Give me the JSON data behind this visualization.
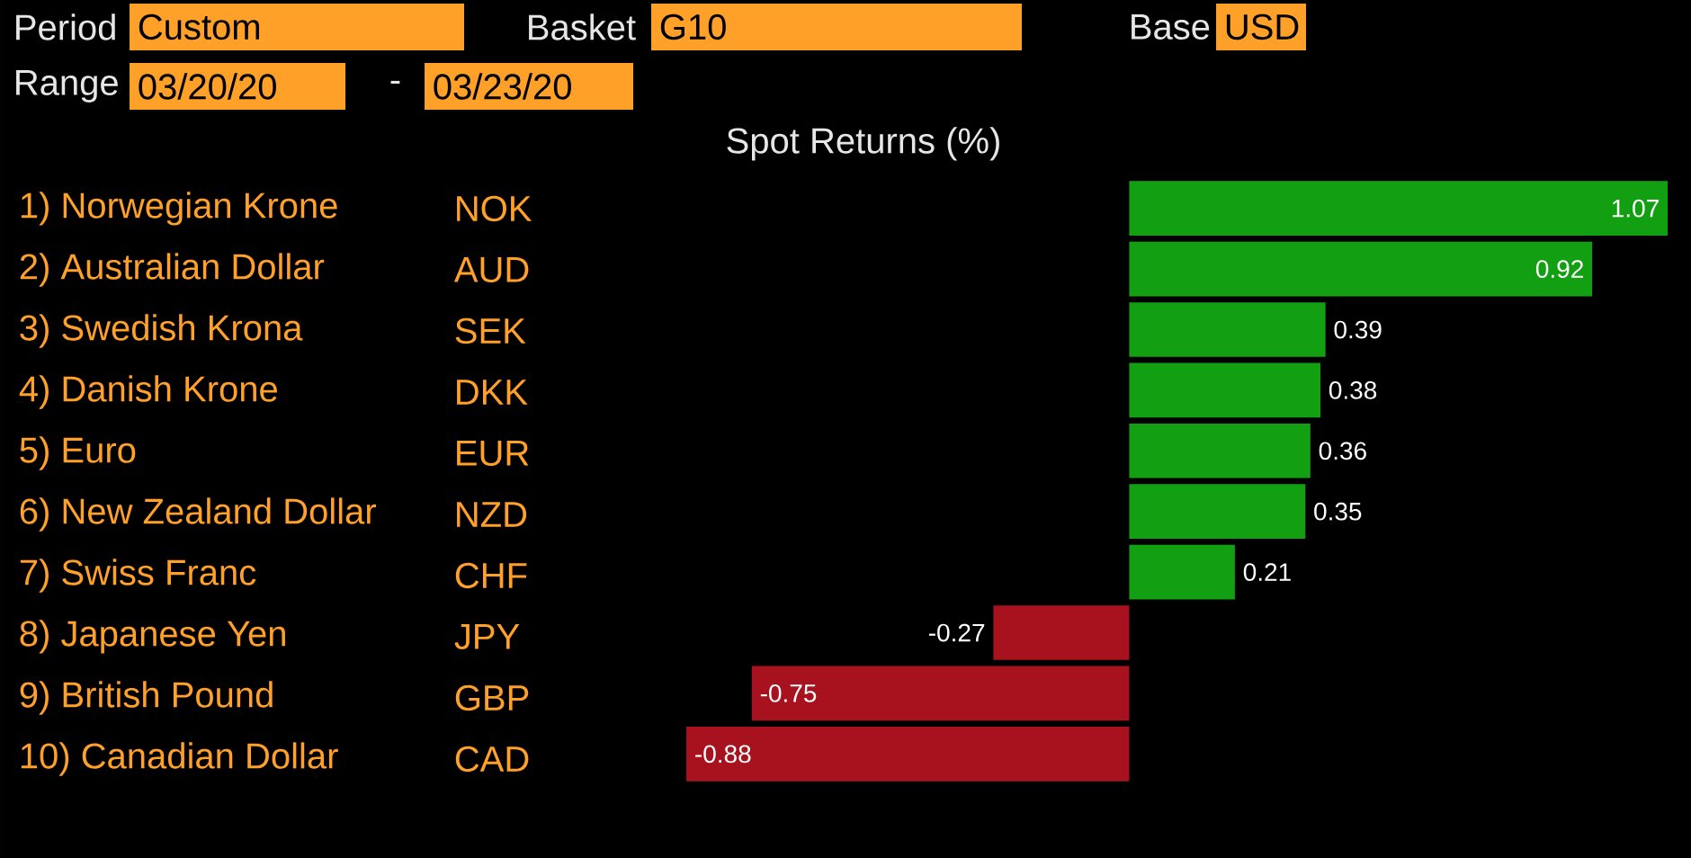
{
  "chart_data": {
    "type": "bar",
    "orientation": "horizontal",
    "title": "Spot Returns (%)",
    "categories": [
      "1) Norwegian Krone",
      "2) Australian Dollar",
      "3) Swedish Krona",
      "4) Danish Krone",
      "5) Euro",
      "6) New Zealand Dollar",
      "7) Swiss Franc",
      "8) Japanese Yen",
      "9) British Pound",
      "10) Canadian Dollar"
    ],
    "values": [
      1.07,
      0.92,
      0.39,
      0.38,
      0.36,
      0.35,
      0.21,
      -0.27,
      -0.75,
      -0.88
    ],
    "value_labels": [
      "1.07",
      "0.92",
      "0.39",
      "0.38",
      "0.36",
      "0.35",
      "0.21",
      "-0.27",
      "-0.75",
      "-0.88"
    ],
    "colors": [
      "#12a012",
      "#12a012",
      "#12a012",
      "#12a012",
      "#12a012",
      "#12a012",
      "#12a012",
      "#a8121e",
      "#a8121e",
      "#a8121e"
    ],
    "annotations": [
      "Period",
      "Custom",
      "Basket",
      "G10",
      "Base",
      "USD",
      "Range",
      "03/20/20",
      "-",
      "03/23/20",
      "NOK",
      "AUD",
      "SEK",
      "DKK",
      "EUR",
      "NZD",
      "CHF",
      "JPY",
      "GBP",
      "CAD"
    ]
  }
}
